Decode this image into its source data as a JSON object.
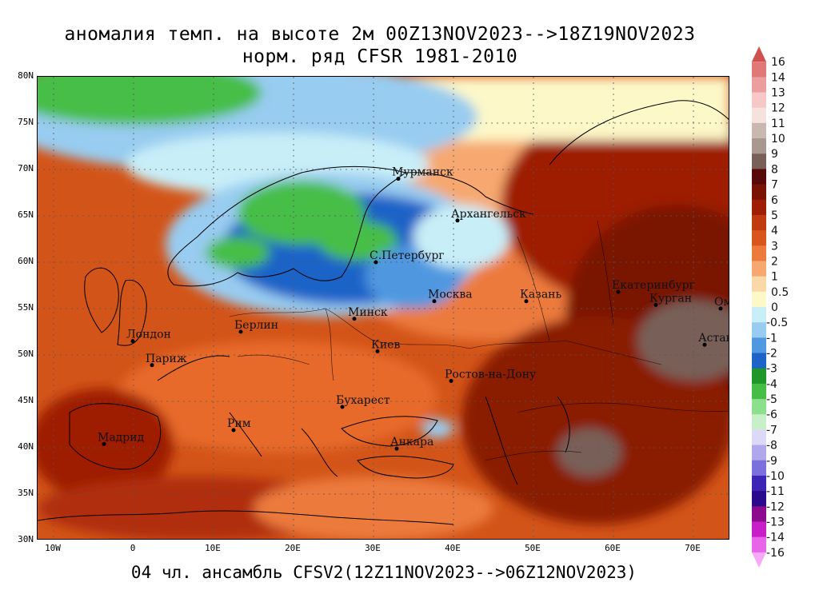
{
  "title_line1": "аномалия темп. на высоте 2м 00Z13NOV2023-->18Z19NOV2023",
  "title_line2": "норм. ряд CFSR 1981-2010",
  "footer": "04 чл. ансамбль CFSV2(12Z11NOV2023-->06Z12NOV2023)",
  "lat_labels": [
    "80N",
    "75N",
    "70N",
    "65N",
    "60N",
    "55N",
    "50N",
    "45N",
    "40N",
    "35N",
    "30N"
  ],
  "lon_labels": [
    "10W",
    "0",
    "10E",
    "20E",
    "30E",
    "40E",
    "50E",
    "60E",
    "70E"
  ],
  "cities": [
    {
      "name": "Мурманск",
      "lat": 69.0,
      "lon": 33.1
    },
    {
      "name": "Архангельск",
      "lat": 64.5,
      "lon": 40.5
    },
    {
      "name": "С.Петербург",
      "lat": 60.0,
      "lon": 30.3
    },
    {
      "name": "Москва",
      "lat": 55.8,
      "lon": 37.6
    },
    {
      "name": "Казань",
      "lat": 55.8,
      "lon": 49.1
    },
    {
      "name": "Екатеринбург",
      "lat": 56.8,
      "lon": 60.6
    },
    {
      "name": "Курган",
      "lat": 55.4,
      "lon": 65.3
    },
    {
      "name": "Омск",
      "lat": 55.0,
      "lon": 73.4
    },
    {
      "name": "Астана",
      "lat": 51.1,
      "lon": 71.4
    },
    {
      "name": "Минск",
      "lat": 53.9,
      "lon": 27.6
    },
    {
      "name": "Киев",
      "lat": 50.4,
      "lon": 30.5
    },
    {
      "name": "Ростов-на-Дону",
      "lat": 47.2,
      "lon": 39.7
    },
    {
      "name": "Лондон",
      "lat": 51.5,
      "lon": -0.1
    },
    {
      "name": "Париж",
      "lat": 48.9,
      "lon": 2.3
    },
    {
      "name": "Берлин",
      "lat": 52.5,
      "lon": 13.4
    },
    {
      "name": "Бухарест",
      "lat": 44.4,
      "lon": 26.1
    },
    {
      "name": "Рим",
      "lat": 41.9,
      "lon": 12.5
    },
    {
      "name": "Мадрид",
      "lat": 40.4,
      "lon": -3.7
    },
    {
      "name": "Анкара",
      "lat": 39.9,
      "lon": 32.9
    }
  ],
  "colorbar": {
    "levels": [
      "16",
      "14",
      "13",
      "12",
      "11",
      "10",
      "9",
      "8",
      "7",
      "6",
      "5",
      "4",
      "3",
      "2",
      "1",
      "0.5",
      "0",
      "-0.5",
      "-1",
      "-2",
      "-3",
      "-4",
      "-5",
      "-6",
      "-7",
      "-8",
      "-9",
      "-10",
      "-11",
      "-12",
      "-13",
      "-14",
      "-16"
    ],
    "colors": [
      "#d05050",
      "#e07878",
      "#ec9e9e",
      "#f6c8c8",
      "#f5e2dc",
      "#c8b8b0",
      "#a89890",
      "#786058",
      "#580a0a",
      "#7a1204",
      "#9e1e06",
      "#c03a10",
      "#d8561c",
      "#ec7a3c",
      "#f6a870",
      "#fad8a8",
      "#fdf8c8",
      "#c8eef8",
      "#98ccf0",
      "#5098e0",
      "#1e64c8",
      "#1e9628",
      "#46be46",
      "#8ce08c",
      "#c8f0c8",
      "#dcd8f8",
      "#b0a8ec",
      "#7c70dc",
      "#3c24b4",
      "#2a0a8c",
      "#8c0a8c",
      "#c81ec8",
      "#e864e8",
      "#f8a8f8"
    ]
  }
}
